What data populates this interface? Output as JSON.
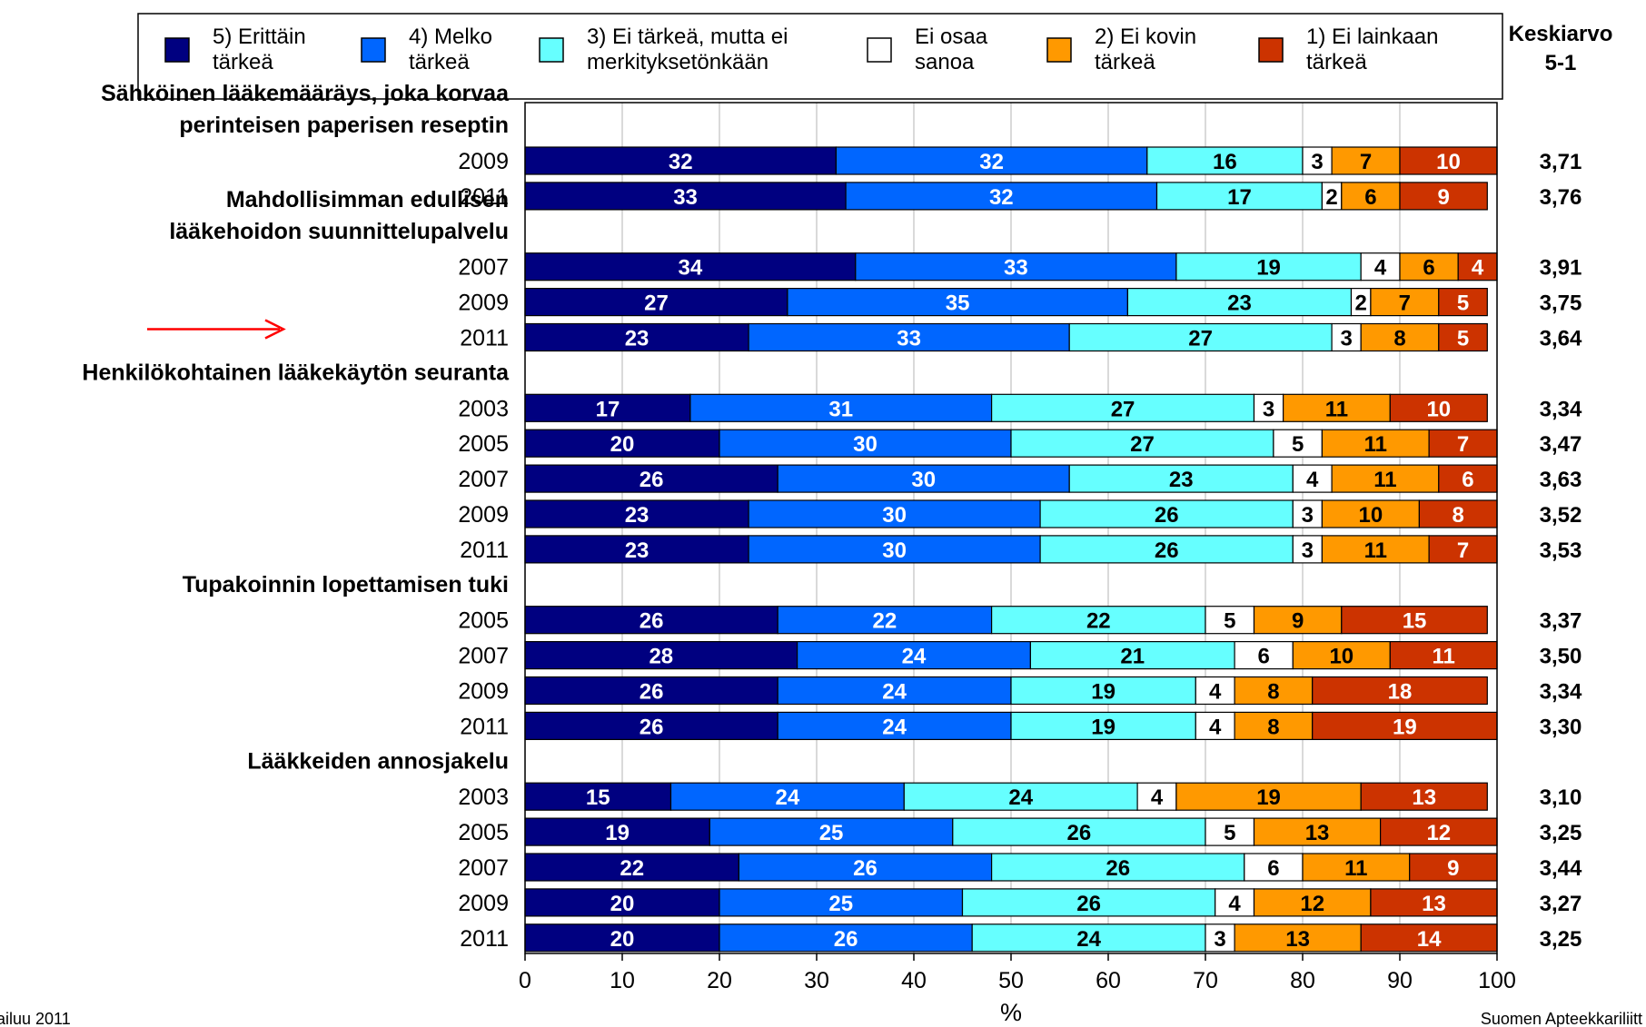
{
  "chart_data": {
    "type": "bar",
    "orientation": "horizontal",
    "stacked": true,
    "xlabel": "%",
    "xlim": [
      0,
      100
    ],
    "x_ticks": [
      "0",
      "10",
      "20",
      "30",
      "40",
      "50",
      "60",
      "70",
      "80",
      "90",
      "100"
    ],
    "legend_position": "top",
    "average_header": [
      "Keskiarvo",
      "5-1"
    ],
    "series": [
      {
        "name": "5) Erittäin tärkeä",
        "label_lines": [
          "5) Erittäin",
          "tärkeä"
        ],
        "color": "#000080",
        "text_color": "#ffffff"
      },
      {
        "name": "4) Melko tärkeä",
        "label_lines": [
          "4) Melko",
          "tärkeä"
        ],
        "color": "#0066ff",
        "text_color": "#ffffff"
      },
      {
        "name": "3) Ei tärkeä, mutta ei merkityksetönkään",
        "label_lines": [
          "3) Ei tärkeä, mutta ei",
          "merkityksetönkään"
        ],
        "color": "#66ffff",
        "text_color": "#000000"
      },
      {
        "name": "Ei osaa sanoa",
        "label_lines": [
          "Ei osaa",
          "sanoa"
        ],
        "color": "#ffffff",
        "text_color": "#000000"
      },
      {
        "name": "2) Ei kovin tärkeä",
        "label_lines": [
          "2) Ei kovin",
          "tärkeä"
        ],
        "color": "#ff9900",
        "text_color": "#000000"
      },
      {
        "name": "1) Ei lainkaan tärkeä",
        "label_lines": [
          "1) Ei lainkaan",
          "tärkeä"
        ],
        "color": "#cc3300",
        "text_color": "#ffffff"
      }
    ],
    "groups": [
      {
        "title_lines": [
          "Sähköinen lääkemääräys, joka korvaa",
          "perinteisen paperisen reseptin"
        ],
        "rows": [
          {
            "year": "2009",
            "values": [
              32,
              32,
              16,
              3,
              7,
              10
            ],
            "average": "3,71"
          },
          {
            "year": "2011",
            "values": [
              33,
              32,
              17,
              2,
              6,
              9
            ],
            "average": "3,76"
          }
        ]
      },
      {
        "title_lines": [
          "Mahdollisimman edullisen",
          "lääkehoidon suunnittelupalvelu"
        ],
        "rows": [
          {
            "year": "2007",
            "values": [
              34,
              33,
              19,
              4,
              6,
              4
            ],
            "average": "3,91"
          },
          {
            "year": "2009",
            "values": [
              27,
              35,
              23,
              2,
              7,
              5
            ],
            "average": "3,75"
          },
          {
            "year": "2011",
            "values": [
              23,
              33,
              27,
              3,
              8,
              5
            ],
            "average": "3,64",
            "marker": "red-arrow"
          }
        ]
      },
      {
        "title_lines": [
          "Henkilökohtainen lääkekäytön seuranta"
        ],
        "rows": [
          {
            "year": "2003",
            "values": [
              17,
              31,
              27,
              3,
              11,
              10
            ],
            "average": "3,34"
          },
          {
            "year": "2005",
            "values": [
              20,
              30,
              27,
              5,
              11,
              7
            ],
            "average": "3,47"
          },
          {
            "year": "2007",
            "values": [
              26,
              30,
              23,
              4,
              11,
              6
            ],
            "average": "3,63"
          },
          {
            "year": "2009",
            "values": [
              23,
              30,
              26,
              3,
              10,
              8
            ],
            "average": "3,52"
          },
          {
            "year": "2011",
            "values": [
              23,
              30,
              26,
              3,
              11,
              7
            ],
            "average": "3,53"
          }
        ]
      },
      {
        "title_lines": [
          "Tupakoinnin lopettamisen tuki"
        ],
        "rows": [
          {
            "year": "2005",
            "values": [
              26,
              22,
              22,
              5,
              9,
              15
            ],
            "average": "3,37"
          },
          {
            "year": "2007",
            "values": [
              28,
              24,
              21,
              6,
              10,
              11
            ],
            "average": "3,50"
          },
          {
            "year": "2009",
            "values": [
              26,
              24,
              19,
              4,
              8,
              18
            ],
            "average": "3,34"
          },
          {
            "year": "2011",
            "values": [
              26,
              24,
              19,
              4,
              8,
              19
            ],
            "average": "3,30"
          }
        ]
      },
      {
        "title_lines": [
          "Lääkkeiden annosjakelu"
        ],
        "rows": [
          {
            "year": "2003",
            "values": [
              15,
              24,
              24,
              4,
              19,
              13
            ],
            "average": "3,10"
          },
          {
            "year": "2005",
            "values": [
              19,
              25,
              26,
              5,
              13,
              12
            ],
            "average": "3,25"
          },
          {
            "year": "2007",
            "values": [
              22,
              26,
              26,
              6,
              11,
              9
            ],
            "average": "3,44"
          },
          {
            "year": "2009",
            "values": [
              20,
              25,
              26,
              4,
              12,
              13
            ],
            "average": "3,27"
          },
          {
            "year": "2011",
            "values": [
              20,
              26,
              24,
              3,
              13,
              14
            ],
            "average": "3,25"
          }
        ]
      }
    ],
    "footer_left": "ailuu 2011",
    "footer_right": "Suomen Apteekkariliitt"
  }
}
